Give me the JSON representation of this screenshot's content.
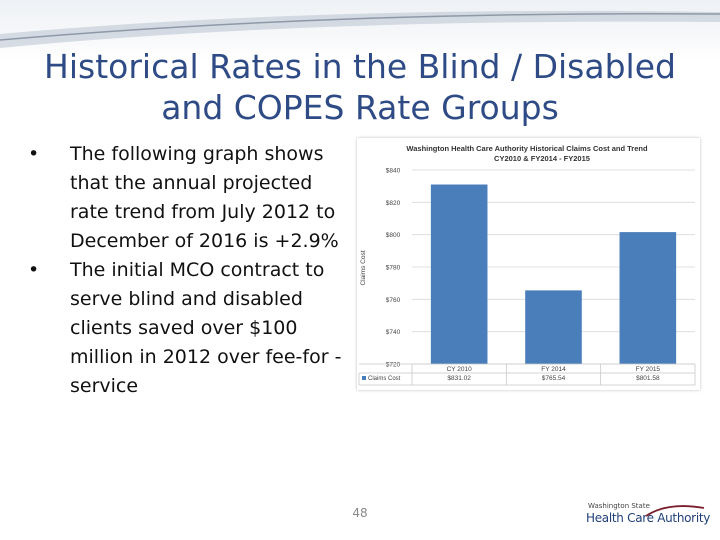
{
  "slide": {
    "title": "Historical Rates in the Blind / Disabled and COPES Rate Groups",
    "bullets": [
      "The following graph shows that the annual projected rate trend from July 2012 to December of 2016 is +2.9%",
      "The initial MCO contract to serve blind and disabled clients saved over $100 million in 2012 over fee-for -service"
    ],
    "bullet_glyph": "•",
    "page_number": "48",
    "logo": {
      "top_text": "Washington State",
      "main_text": "Health Care Authority"
    }
  },
  "chart_data": {
    "type": "bar",
    "title": "Washington Health Care Authority Historical Claims Cost and Trend",
    "subtitle": "CY2010 & FY2014 - FY2015",
    "ylabel": "Claims Cost",
    "ylim": [
      720,
      840
    ],
    "yticks": [
      "$720",
      "$740",
      "$760",
      "$780",
      "$800",
      "$820",
      "$840"
    ],
    "ytick_values": [
      720,
      740,
      760,
      780,
      800,
      820,
      840
    ],
    "categories": [
      "CY 2010",
      "FY 2014",
      "FY 2015"
    ],
    "series": [
      {
        "name": "Claims Cost",
        "values": [
          831.02,
          765.54,
          801.58
        ]
      }
    ],
    "table_values": [
      "$831.02",
      "$765.54",
      "$801.58"
    ],
    "bar_color": "#4a7ebb"
  }
}
